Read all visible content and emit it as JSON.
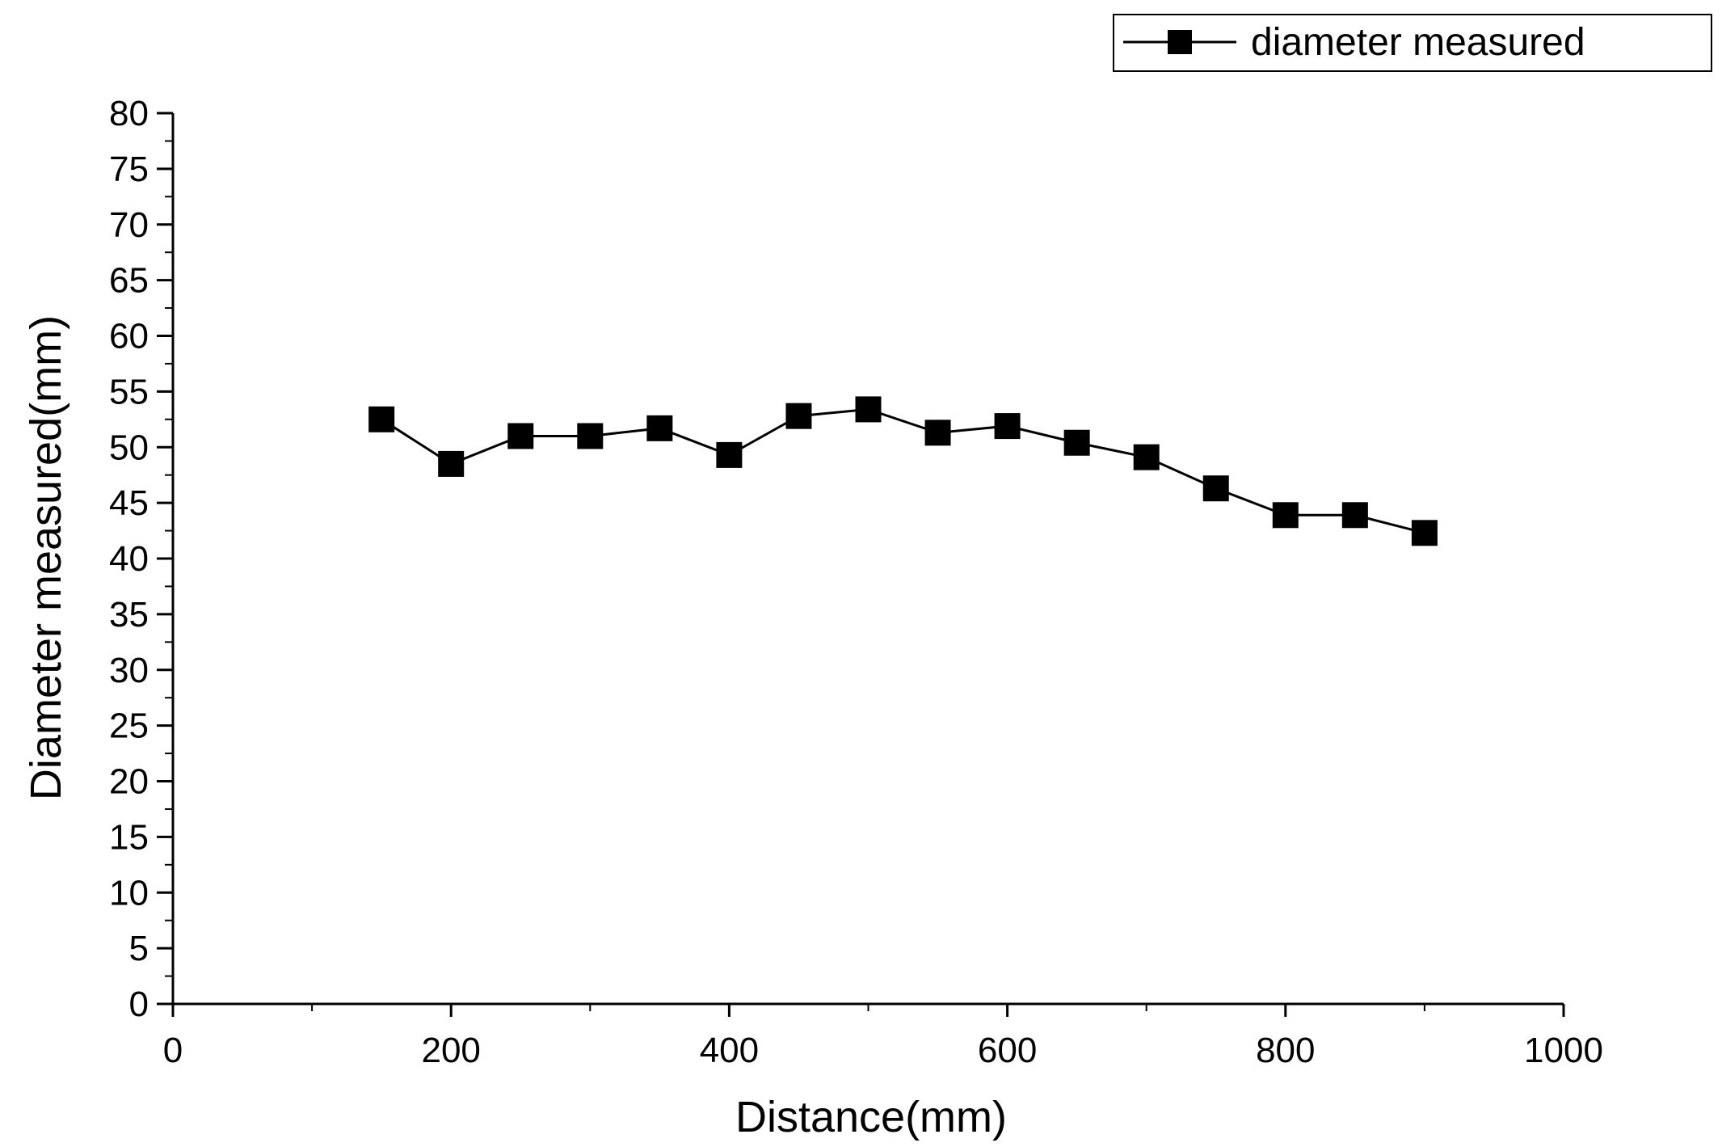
{
  "chart_data": {
    "type": "line",
    "title": "",
    "xlabel": "Distance(mm)",
    "ylabel": "Diameter measured(mm)",
    "xlim": [
      0,
      1000
    ],
    "ylim": [
      0,
      80
    ],
    "x_ticks": [
      0,
      200,
      400,
      600,
      800,
      1000
    ],
    "y_ticks": [
      0,
      5,
      10,
      15,
      20,
      25,
      30,
      35,
      40,
      45,
      50,
      55,
      60,
      65,
      70,
      75,
      80
    ],
    "grid": false,
    "legend_position": "top-right",
    "series": [
      {
        "name": "diameter measured",
        "marker": "square",
        "color": "#000000",
        "x": [
          150,
          200,
          250,
          300,
          350,
          400,
          450,
          500,
          550,
          600,
          650,
          700,
          750,
          800,
          850,
          900
        ],
        "y": [
          52.5,
          48.5,
          51.0,
          51.0,
          51.7,
          49.3,
          52.8,
          53.4,
          51.3,
          51.9,
          50.4,
          49.1,
          46.3,
          43.9,
          43.9,
          42.3
        ]
      }
    ]
  }
}
